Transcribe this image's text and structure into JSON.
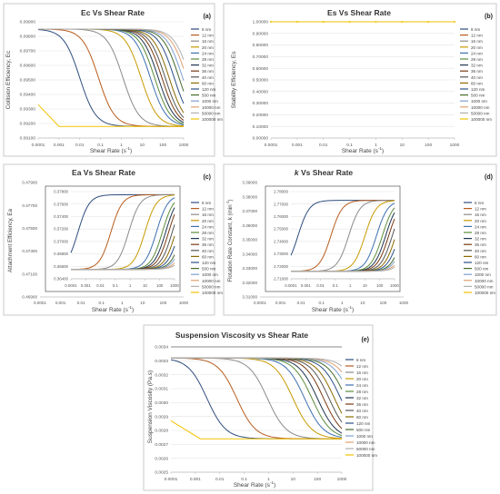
{
  "legend_entries": [
    "8 nm",
    "12 nm",
    "16 nm",
    "20 nm",
    "24 nm",
    "28 nm",
    "32 nm",
    "36 nm",
    "40 nm",
    "60 nm",
    "120 nm",
    "500 nm",
    "1000 nm",
    "10000 nm",
    "50000 nm",
    "100000 nm"
  ],
  "series_colors": [
    "#2f4d7e",
    "#b85c1e",
    "#8a8a8a",
    "#c79a00",
    "#3e6fb0",
    "#5b8c3a",
    "#1f3550",
    "#7a3a12",
    "#555555",
    "#8c6a00",
    "#2b4f86",
    "#476b2b",
    "#7f9fcf",
    "#e0a070",
    "#b0b0b0",
    "#f2c200"
  ],
  "chart_data": [
    {
      "panel": "(a)",
      "type": "line",
      "title": "Ec Vs Shear Rate",
      "xlabel": "Shear Rate (s-1)",
      "ylabel": "Collision Efficiency, Ec",
      "xscale": "log",
      "xticks": [
        "0.0001",
        "0.001",
        "0.01",
        "0.1",
        "1",
        "10",
        "100",
        "1000"
      ],
      "yticks": [
        "0.09100",
        "0.09200",
        "0.09300",
        "0.09400",
        "0.09500",
        "0.09600",
        "0.09700",
        "0.09800",
        "0.09900"
      ],
      "xlim": [
        0.0001,
        1000
      ],
      "ylim": [
        0.091,
        0.099
      ],
      "curve": {
        "high": 0.0985,
        "low": 0.0918,
        "midpoints": [
          0.01,
          0.08,
          1.2,
          9,
          25,
          40,
          60,
          90,
          130,
          200,
          350,
          600,
          900,
          1400,
          2000
        ]
      },
      "flat_series": {
        "name": "100000 nm",
        "value": 0.0918
      }
    },
    {
      "panel": "(b)",
      "type": "line",
      "title": "Es Vs Shear Rate",
      "xlabel": "Shear Rate (s-1)",
      "ylabel": "Stability Efficiency, Es",
      "xscale": "log",
      "xticks": [
        "0.0001",
        "0.001",
        "0.01",
        "0.1",
        "1",
        "10",
        "100",
        "1000"
      ],
      "yticks": [
        "0.00000",
        "0.10000",
        "0.20000",
        "0.30000",
        "0.40000",
        "0.50000",
        "0.60000",
        "0.70000",
        "0.80000",
        "0.90000",
        "1.00000"
      ],
      "xlim": [
        0.0001,
        1000
      ],
      "ylim": [
        0,
        1
      ],
      "value_all_series": 1.0
    },
    {
      "panel": "(c)",
      "type": "line",
      "title": "Ea Vs Shear Rate",
      "xlabel": "Shear Rate (s-1)",
      "ylabel": "Attachment Efficiency, Ea",
      "xscale": "log",
      "xticks": [
        "0.0001",
        "0.001",
        "0.01",
        "0.1",
        "1",
        "10",
        "100",
        "1000"
      ],
      "outer_yticks": [
        "0.46900",
        "0.47100",
        "0.47300",
        "0.47500",
        "0.47700",
        "0.47900"
      ],
      "inset_yticks": [
        "0.36400",
        "0.36600",
        "0.36800",
        "0.37000",
        "0.37200",
        "0.37400",
        "0.37600",
        "0.37800"
      ],
      "inset_ylim": [
        0.364,
        0.378
      ],
      "curve": {
        "low": 0.3655,
        "high": 0.3775,
        "midpoints": [
          0.0003,
          0.05,
          0.8,
          10,
          60,
          150,
          250,
          400,
          700,
          1200,
          2000,
          3500,
          5000,
          8000,
          12000
        ]
      }
    },
    {
      "panel": "(d)",
      "type": "line",
      "title": "k Vs Shear Rate",
      "title_italic_part": "k",
      "xlabel": "Shear Rate (s-1)",
      "ylabel": "Flotation Rate Constant, k (min-1)",
      "xscale": "log",
      "xticks": [
        "0.0001",
        "0.001",
        "0.01",
        "0.1",
        "1",
        "10",
        "100",
        "1000"
      ],
      "outer_yticks": [
        "3.31000",
        "3.32000",
        "3.33000",
        "3.34000",
        "3.35000",
        "3.36000",
        "3.37000",
        "3.38000",
        "3.39000"
      ],
      "inset_yticks": [
        "2.71000",
        "2.72000",
        "2.73000",
        "2.74000",
        "2.75000",
        "2.76000",
        "2.77000",
        "2.78000"
      ],
      "inset_ylim": [
        2.71,
        2.78
      ],
      "curve": {
        "low": 2.716,
        "high": 2.773,
        "midpoints": [
          0.0003,
          0.05,
          0.8,
          10,
          60,
          150,
          250,
          400,
          700,
          1200,
          2000,
          3500,
          5000,
          8000,
          12000
        ]
      }
    },
    {
      "panel": "(e)",
      "type": "line",
      "title": "Suspension Viscosity vs Shear Rate",
      "xlabel": "Shear Rate (s-1)",
      "ylabel": "Suspension Viscosity (Pa.s)",
      "xscale": "log",
      "xticks": [
        "0.0001",
        "0.001",
        "0.01",
        "0.1",
        "1",
        "10",
        "100",
        "1000"
      ],
      "yticks": [
        "0.0025",
        "0.0026",
        "0.0027",
        "0.0028",
        "0.0029",
        "0.0030",
        "0.0031",
        "0.0032",
        "0.0033",
        "0.0034"
      ],
      "xlim": [
        0.0001,
        1000
      ],
      "ylim": [
        0.0025,
        0.0034
      ],
      "curve": {
        "high": 0.00332,
        "low": 0.00274,
        "midpoints": [
          0.003,
          0.05,
          0.9,
          10,
          30,
          60,
          100,
          180,
          300,
          500,
          900,
          1500,
          2500,
          4000,
          7000
        ]
      },
      "flat_series": {
        "name": "100000 nm",
        "value": 0.00274
      },
      "top_line": 0.0034
    }
  ]
}
